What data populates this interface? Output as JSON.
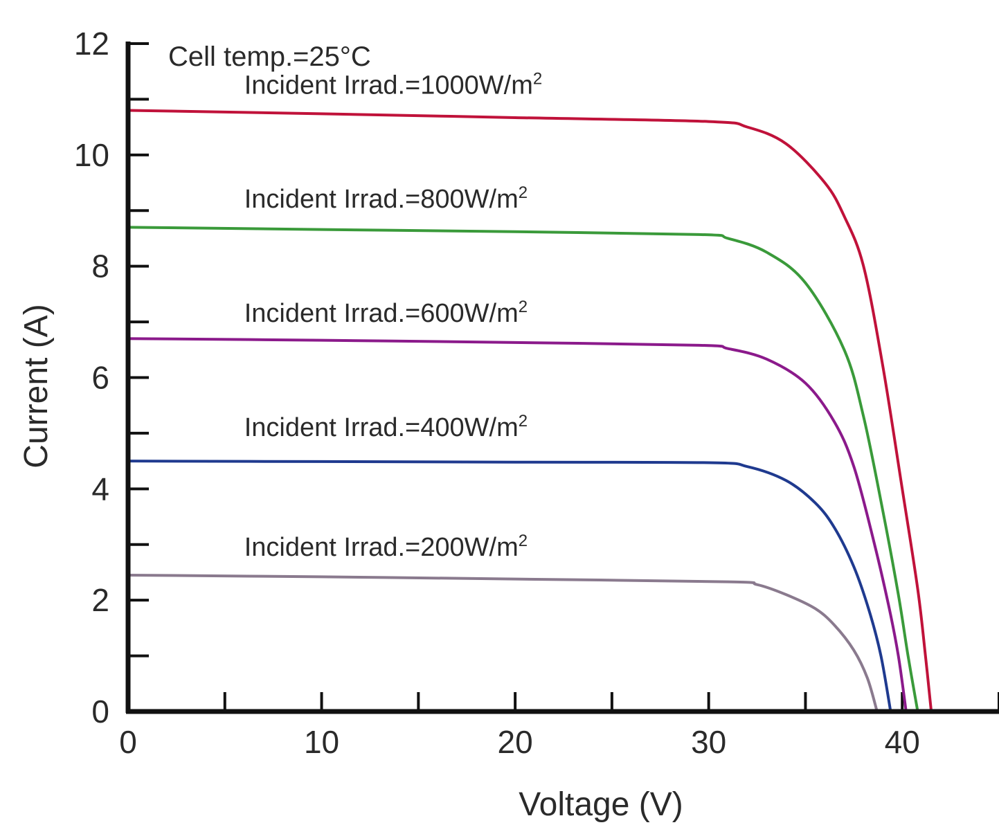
{
  "chart_data": {
    "type": "line",
    "xlabel": "Voltage (V)",
    "ylabel": "Current (A)",
    "xlim": [
      0,
      45
    ],
    "ylim": [
      0,
      12
    ],
    "x_ticks": [
      "0",
      "10",
      "20",
      "30",
      "40"
    ],
    "y_ticks": [
      "0",
      "2",
      "4",
      "6",
      "8",
      "10",
      "12"
    ],
    "annotation": "Cell temp.=25°C",
    "grid": false,
    "series": [
      {
        "name": "Incident Irrad.=1000W/m²",
        "color": "#c0123a",
        "x": [
          0,
          10,
          20,
          30,
          32,
          34,
          36,
          37,
          38,
          39,
          40,
          40.8,
          41.2,
          41.5
        ],
        "y": [
          10.8,
          10.74,
          10.67,
          10.6,
          10.5,
          10.2,
          9.5,
          8.9,
          8.0,
          6.2,
          4.0,
          2.2,
          1.0,
          0
        ]
      },
      {
        "name": "Incident Irrad.=800W/m²",
        "color": "#3a9a3a",
        "x": [
          0,
          10,
          20,
          29.5,
          31,
          33,
          35,
          37,
          38,
          39,
          39.8,
          40.3,
          40.8
        ],
        "y": [
          8.7,
          8.66,
          8.62,
          8.57,
          8.5,
          8.25,
          7.7,
          6.5,
          5.3,
          3.6,
          2.1,
          1.0,
          0
        ]
      },
      {
        "name": "Incident Irrad.=600W/m²",
        "color": "#8b1a8b",
        "x": [
          0,
          10,
          20,
          29.5,
          31,
          33,
          35,
          36.5,
          37.5,
          38.5,
          39.3,
          39.8,
          40.2
        ],
        "y": [
          6.7,
          6.67,
          6.63,
          6.58,
          6.52,
          6.33,
          5.9,
          5.2,
          4.4,
          3.1,
          1.9,
          1.0,
          0
        ]
      },
      {
        "name": "Incident Irrad.=400W/m²",
        "color": "#1f3a8f",
        "x": [
          0,
          10,
          20,
          30,
          32,
          34,
          35.5,
          36.5,
          37.5,
          38.3,
          38.9,
          39.4
        ],
        "y": [
          4.5,
          4.49,
          4.48,
          4.47,
          4.4,
          4.15,
          3.75,
          3.3,
          2.6,
          1.8,
          1.0,
          0
        ]
      },
      {
        "name": "Incident Irrad.=200W/m²",
        "color": "#8a7a8e",
        "x": [
          0,
          10,
          20,
          31,
          32.5,
          34,
          35.5,
          36.5,
          37.5,
          38.2,
          38.7
        ],
        "y": [
          2.45,
          2.42,
          2.38,
          2.33,
          2.28,
          2.1,
          1.85,
          1.55,
          1.1,
          0.6,
          0
        ]
      }
    ],
    "series_labels": [
      {
        "text": "Incident Irrad.=1000W/m",
        "sup": "2",
        "anchor_x": 6,
        "anchor_y": 11.1
      },
      {
        "text": "Incident Irrad.=800W/m",
        "sup": "2",
        "anchor_x": 6,
        "anchor_y": 9.05
      },
      {
        "text": "Incident Irrad.=600W/m",
        "sup": "2",
        "anchor_x": 6,
        "anchor_y": 7.0
      },
      {
        "text": "Incident Irrad.=400W/m",
        "sup": "2",
        "anchor_x": 6,
        "anchor_y": 4.95
      },
      {
        "text": "Incident Irrad.=200W/m",
        "sup": "2",
        "anchor_x": 6,
        "anchor_y": 2.8
      }
    ]
  }
}
